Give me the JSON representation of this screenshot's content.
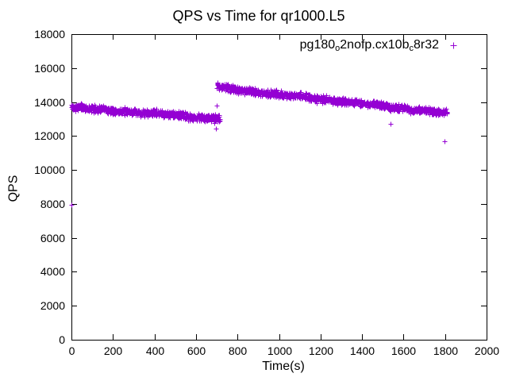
{
  "window": {
    "background": "#ffffff",
    "foreground": "#000000"
  },
  "chart_data": {
    "type": "scatter",
    "title": "QPS vs Time for qr1000.L5",
    "xlabel": "Time(s)",
    "ylabel": "QPS",
    "xlim": [
      0,
      2000
    ],
    "ylim": [
      0,
      18000
    ],
    "x_ticks": [
      0,
      200,
      400,
      600,
      800,
      1000,
      1200,
      1400,
      1600,
      1800,
      2000
    ],
    "y_ticks": [
      0,
      2000,
      4000,
      6000,
      8000,
      10000,
      12000,
      14000,
      16000,
      18000
    ],
    "grid": false,
    "tick_style": "inward-mirrored",
    "legend": {
      "position": "top-right-inside",
      "entries": [
        {
          "label": "pg180_o2nofp.cx10b_c8r32",
          "label_parts": [
            {
              "text": "pg180",
              "sub": false
            },
            {
              "text": "o",
              "sub": true
            },
            {
              "text": "2nofp.cx10b",
              "sub": false
            },
            {
              "text": "c",
              "sub": true
            },
            {
              "text": "8r32",
              "sub": false
            }
          ],
          "marker": "plus",
          "color": "#9400D3"
        }
      ]
    },
    "series": [
      {
        "name": "pg180_o2nofp.cx10b_c8r32",
        "color": "#9400D3",
        "marker": "plus",
        "sample_interval_s": 1,
        "segments": [
          {
            "t_start": 0,
            "t_end": 715,
            "qps_start": 13700,
            "qps_end": 13030,
            "noise": 250
          },
          {
            "t_start": 700,
            "t_end": 1810,
            "qps_start": 14880,
            "qps_end": 13350,
            "noise": 250
          }
        ],
        "outliers": [
          {
            "t": 0,
            "qps": 7950
          },
          {
            "t": 688,
            "qps": 12760
          },
          {
            "t": 696,
            "qps": 12440
          },
          {
            "t": 700,
            "qps": 13780
          },
          {
            "t": 1537,
            "qps": 12720
          },
          {
            "t": 1797,
            "qps": 11700
          }
        ]
      }
    ]
  }
}
